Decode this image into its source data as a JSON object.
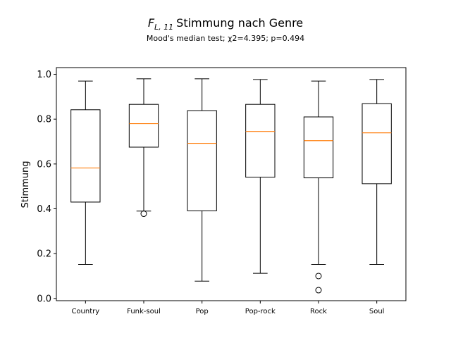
{
  "chart_data": {
    "type": "boxplot",
    "title_main": "Stimmung nach Genre",
    "title_math": "F",
    "title_math_sub": "L, 11",
    "subtitle": "Mood's median test; χ2=4.395; p=0.494",
    "xlabel": "",
    "ylabel": "Stimmung",
    "ylim": [
      -0.01,
      1.03
    ],
    "yticks": [
      "0.0",
      "0.2",
      "0.4",
      "0.6",
      "0.8",
      "1.0"
    ],
    "ytick_values": [
      0.0,
      0.2,
      0.4,
      0.6,
      0.8,
      1.0
    ],
    "categories": [
      "Country",
      "Funk-soul",
      "Pop",
      "Pop-rock",
      "Rock",
      "Soul"
    ],
    "boxes": [
      {
        "label": "Country",
        "whisker_low": 0.152,
        "q1": 0.43,
        "median": 0.582,
        "q3": 0.842,
        "whisker_high": 0.97,
        "outliers": []
      },
      {
        "label": "Funk-soul",
        "whisker_low": 0.39,
        "q1": 0.675,
        "median": 0.78,
        "q3": 0.866,
        "whisker_high": 0.98,
        "outliers": [
          0.378
        ]
      },
      {
        "label": "Pop",
        "whisker_low": 0.077,
        "q1": 0.391,
        "median": 0.692,
        "q3": 0.838,
        "whisker_high": 0.98,
        "outliers": []
      },
      {
        "label": "Pop-rock",
        "whisker_low": 0.112,
        "q1": 0.541,
        "median": 0.745,
        "q3": 0.866,
        "whisker_high": 0.977,
        "outliers": []
      },
      {
        "label": "Rock",
        "whisker_low": 0.152,
        "q1": 0.538,
        "median": 0.704,
        "q3": 0.81,
        "whisker_high": 0.97,
        "outliers": [
          0.1,
          0.037
        ]
      },
      {
        "label": "Soul",
        "whisker_low": 0.152,
        "q1": 0.512,
        "median": 0.739,
        "q3": 0.869,
        "whisker_high": 0.977,
        "outliers": []
      }
    ],
    "colors": {
      "median": "#ff7f0e",
      "box": "#000000"
    },
    "grid": false
  }
}
